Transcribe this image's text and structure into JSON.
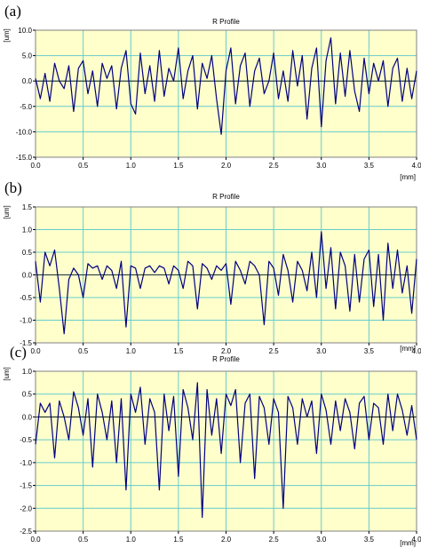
{
  "panels": [
    {
      "label": "(a)",
      "title": "R Profile",
      "ylabel": "[um]",
      "xlabel": "[mm]",
      "yticks": [
        "10.0",
        "5.0",
        "0.0",
        "-5.0",
        "-10.0",
        "-15.0"
      ],
      "xticks": [
        "0.0",
        "0.5",
        "1.0",
        "1.5",
        "2.0",
        "2.5",
        "3.0",
        "3.5",
        "4.0"
      ]
    },
    {
      "label": "(b)",
      "title": "R Profile",
      "ylabel": "[um]",
      "xlabel": "[mm]",
      "yticks": [
        "1.5",
        "1.0",
        "0.5",
        "0.0",
        "-0.5",
        "-1.0",
        "-1.5"
      ],
      "xticks": [
        "0.0",
        "0.5",
        "1.0",
        "1.5",
        "2.0",
        "2.5",
        "3.0",
        "3.5",
        "4.0"
      ]
    },
    {
      "label": "(c)",
      "title": "R Profile",
      "ylabel": "[um]",
      "xlabel": "[mm]",
      "yticks": [
        "1.0",
        "0.5",
        "0.0",
        "-0.5",
        "-1.0",
        "-1.5",
        "-2.0",
        "-2.5"
      ],
      "xticks": [
        "0.0",
        "0.5",
        "1.0",
        "1.5",
        "2.0",
        "2.5",
        "3.0",
        "3.5",
        "4.0"
      ]
    }
  ],
  "colors": {
    "plot_bg": "#ffffcc",
    "grid": "#66cccc",
    "line": "#000080"
  },
  "chart_data": [
    {
      "type": "line",
      "title": "R Profile",
      "xlabel": "[mm]",
      "ylabel": "[um]",
      "xlim": [
        0,
        4
      ],
      "ylim": [
        -15,
        10
      ],
      "grid": true,
      "series": [
        {
          "x": [
            0.0,
            0.05,
            0.1,
            0.15,
            0.2,
            0.25,
            0.3,
            0.35,
            0.4,
            0.45,
            0.5,
            0.55,
            0.6,
            0.65,
            0.7,
            0.75,
            0.8,
            0.85,
            0.9,
            0.95,
            1.0,
            1.05,
            1.1,
            1.15,
            1.2,
            1.25,
            1.3,
            1.35,
            1.4,
            1.45,
            1.5,
            1.55,
            1.6,
            1.65,
            1.7,
            1.75,
            1.8,
            1.85,
            1.9,
            1.95,
            2.0,
            2.05,
            2.1,
            2.15,
            2.2,
            2.25,
            2.3,
            2.35,
            2.4,
            2.45,
            2.5,
            2.55,
            2.6,
            2.65,
            2.7,
            2.75,
            2.8,
            2.85,
            2.9,
            2.95,
            3.0,
            3.05,
            3.1,
            3.15,
            3.2,
            3.25,
            3.3,
            3.35,
            3.4,
            3.45,
            3.5,
            3.55,
            3.6,
            3.65,
            3.7,
            3.75,
            3.8,
            3.85,
            3.9,
            3.95,
            4.0
          ],
          "y": [
            0.5,
            -3.5,
            1.5,
            -4.0,
            3.5,
            0.0,
            -1.5,
            3.0,
            -6.0,
            2.5,
            4.0,
            -2.5,
            2.0,
            -5.0,
            3.5,
            0.5,
            3.0,
            -5.5,
            2.5,
            6.0,
            -4.5,
            -6.5,
            5.5,
            -2.5,
            3.0,
            -4.0,
            6.0,
            -3.0,
            2.5,
            0.0,
            6.5,
            -3.5,
            2.0,
            5.0,
            -5.5,
            3.5,
            0.5,
            5.0,
            -3.5,
            -10.5,
            2.0,
            6.5,
            -4.5,
            3.0,
            5.5,
            -5.0,
            2.0,
            4.5,
            -2.5,
            0.0,
            5.5,
            -3.5,
            2.0,
            -4.0,
            6.0,
            -1.0,
            5.0,
            -7.5,
            2.5,
            6.5,
            -9.0,
            4.0,
            8.5,
            -4.5,
            5.5,
            -3.0,
            6.0,
            -2.0,
            -6.0,
            4.5,
            -2.5,
            3.5,
            0.0,
            4.0,
            -5.0,
            2.5,
            4.5,
            -4.0,
            2.5,
            -3.5,
            2.0
          ]
        }
      ]
    },
    {
      "type": "line",
      "title": "R Profile",
      "xlabel": "[mm]",
      "ylabel": "[um]",
      "xlim": [
        0,
        4
      ],
      "ylim": [
        -1.5,
        1.5
      ],
      "grid": true,
      "series": [
        {
          "x": [
            0.0,
            0.05,
            0.1,
            0.15,
            0.2,
            0.25,
            0.3,
            0.35,
            0.4,
            0.45,
            0.5,
            0.55,
            0.6,
            0.65,
            0.7,
            0.75,
            0.8,
            0.85,
            0.9,
            0.95,
            1.0,
            1.05,
            1.1,
            1.15,
            1.2,
            1.25,
            1.3,
            1.35,
            1.4,
            1.45,
            1.5,
            1.55,
            1.6,
            1.65,
            1.7,
            1.75,
            1.8,
            1.85,
            1.9,
            1.95,
            2.0,
            2.05,
            2.1,
            2.15,
            2.2,
            2.25,
            2.3,
            2.35,
            2.4,
            2.45,
            2.5,
            2.55,
            2.6,
            2.65,
            2.7,
            2.75,
            2.8,
            2.85,
            2.9,
            2.95,
            3.0,
            3.05,
            3.1,
            3.15,
            3.2,
            3.25,
            3.3,
            3.35,
            3.4,
            3.45,
            3.5,
            3.55,
            3.6,
            3.65,
            3.7,
            3.75,
            3.8,
            3.85,
            3.9,
            3.95,
            4.0
          ],
          "y": [
            0.3,
            -0.6,
            0.5,
            0.2,
            0.55,
            -0.3,
            -1.3,
            -0.1,
            0.15,
            0.0,
            -0.5,
            0.25,
            0.15,
            0.2,
            -0.1,
            0.2,
            0.1,
            -0.3,
            0.3,
            -1.15,
            0.2,
            0.15,
            -0.3,
            0.15,
            0.2,
            0.05,
            0.2,
            0.15,
            -0.2,
            0.2,
            0.1,
            -0.3,
            0.3,
            0.2,
            -0.75,
            0.25,
            0.15,
            -0.1,
            0.2,
            0.1,
            0.25,
            -0.65,
            0.3,
            0.1,
            -0.2,
            0.3,
            0.2,
            0.0,
            -1.1,
            0.3,
            0.15,
            -0.45,
            0.45,
            0.1,
            -0.6,
            0.3,
            0.1,
            -0.35,
            0.5,
            -0.5,
            0.95,
            -0.3,
            0.6,
            -0.75,
            0.5,
            0.2,
            -0.8,
            0.45,
            -0.6,
            0.35,
            0.55,
            -0.7,
            0.45,
            -1.0,
            0.7,
            -0.3,
            0.55,
            -0.4,
            0.2,
            -0.85,
            0.35
          ]
        }
      ]
    },
    {
      "type": "line",
      "title": "R Profile",
      "xlabel": "[mm]",
      "ylabel": "[um]",
      "xlim": [
        0,
        4
      ],
      "ylim": [
        -2.5,
        1.0
      ],
      "grid": true,
      "series": [
        {
          "x": [
            0.0,
            0.05,
            0.1,
            0.15,
            0.2,
            0.25,
            0.3,
            0.35,
            0.4,
            0.45,
            0.5,
            0.55,
            0.6,
            0.65,
            0.7,
            0.75,
            0.8,
            0.85,
            0.9,
            0.95,
            1.0,
            1.05,
            1.1,
            1.15,
            1.2,
            1.25,
            1.3,
            1.35,
            1.4,
            1.45,
            1.5,
            1.55,
            1.6,
            1.65,
            1.7,
            1.75,
            1.8,
            1.85,
            1.9,
            1.95,
            2.0,
            2.05,
            2.1,
            2.15,
            2.2,
            2.25,
            2.3,
            2.35,
            2.4,
            2.45,
            2.5,
            2.55,
            2.6,
            2.65,
            2.7,
            2.75,
            2.8,
            2.85,
            2.9,
            2.95,
            3.0,
            3.05,
            3.1,
            3.15,
            3.2,
            3.25,
            3.3,
            3.35,
            3.4,
            3.45,
            3.5,
            3.55,
            3.6,
            3.65,
            3.7,
            3.75,
            3.8,
            3.85,
            3.9,
            3.95,
            4.0
          ],
          "y": [
            -0.6,
            0.3,
            0.1,
            0.3,
            -0.9,
            0.35,
            0.0,
            -0.5,
            0.55,
            0.2,
            -0.4,
            0.4,
            -1.1,
            0.5,
            0.1,
            -0.5,
            0.35,
            -1.0,
            0.4,
            -1.6,
            0.5,
            0.1,
            0.65,
            -0.6,
            0.4,
            0.1,
            -1.6,
            0.5,
            -0.3,
            0.45,
            -1.3,
            0.6,
            0.2,
            -0.5,
            0.75,
            -2.2,
            0.6,
            -0.4,
            0.4,
            -0.8,
            0.5,
            0.25,
            0.6,
            -1.0,
            0.3,
            0.5,
            -1.35,
            0.45,
            0.2,
            -0.6,
            0.4,
            0.1,
            -2.0,
            0.45,
            0.2,
            -0.6,
            0.4,
            0.0,
            0.35,
            -0.8,
            0.5,
            0.15,
            -0.6,
            0.35,
            -0.3,
            0.4,
            0.1,
            -0.7,
            0.3,
            0.45,
            -0.5,
            0.3,
            0.2,
            -0.6,
            0.5,
            -0.3,
            0.5,
            0.15,
            -0.4,
            0.25,
            -0.5
          ]
        }
      ]
    }
  ]
}
